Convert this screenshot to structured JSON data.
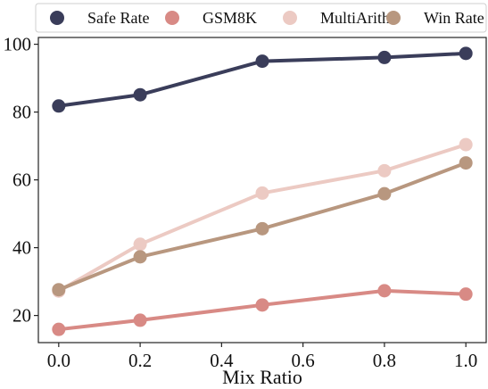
{
  "chart_data": {
    "type": "line",
    "xlabel": "Mix Ratio",
    "ylabel": "",
    "x": [
      0.0,
      0.2,
      0.5,
      0.8,
      1.0
    ],
    "xlim": [
      -0.05,
      1.05
    ],
    "ylim": [
      12,
      102
    ],
    "xticks": [
      0.0,
      0.2,
      0.4,
      0.6,
      0.8,
      1.0
    ],
    "xtick_labels": [
      "0.0",
      "0.2",
      "0.4",
      "0.6",
      "0.8",
      "1.0"
    ],
    "yticks": [
      20,
      40,
      60,
      80,
      100
    ],
    "ytick_labels": [
      "20",
      "40",
      "60",
      "80",
      "100"
    ],
    "grid": false,
    "legend_position": "top",
    "series": [
      {
        "name": "Safe Rate",
        "color": "#3a3d5a",
        "values": [
          81.8,
          85.1,
          95.0,
          96.1,
          97.3
        ]
      },
      {
        "name": "GSM8K",
        "color": "#d88a85",
        "values": [
          15.9,
          18.6,
          23.1,
          27.3,
          26.3
        ]
      },
      {
        "name": "MultiArith",
        "color": "#eccac3",
        "values": [
          27.2,
          41.0,
          56.1,
          62.7,
          70.4
        ]
      },
      {
        "name": "Win Rate",
        "color": "#b8977f",
        "values": [
          27.6,
          37.3,
          45.6,
          55.9,
          65.0
        ]
      }
    ]
  }
}
